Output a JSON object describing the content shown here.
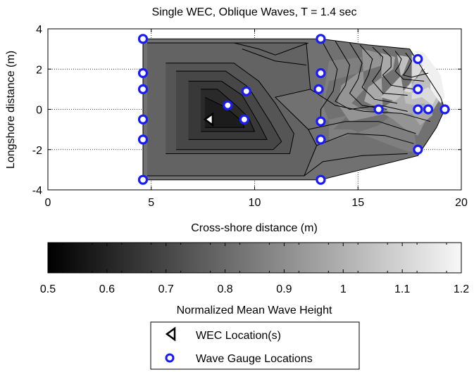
{
  "chart_data": [
    {
      "type": "contour",
      "title": "Single WEC, Oblique Waves, T = 1.4 sec",
      "xlabel": "Cross-shore distance (m)",
      "ylabel": "Longshore distance (m)",
      "xlim": [
        0,
        20
      ],
      "ylim": [
        -4,
        4
      ],
      "xticks": [
        0,
        5,
        10,
        15,
        20
      ],
      "yticks": [
        -4,
        -2,
        0,
        2,
        4
      ],
      "grid": true,
      "colormap": "gray",
      "color_range": [
        0.5,
        1.2
      ],
      "contour_bands": [
        {
          "level": 0.82,
          "points": [
            [
              4.6,
              3.5
            ],
            [
              13.2,
              3.5
            ],
            [
              15.5,
              3.2
            ],
            [
              17.5,
              3.0
            ],
            [
              19.0,
              0.6
            ],
            [
              19.2,
              0.0
            ],
            [
              18.8,
              -0.9
            ],
            [
              17.9,
              -2.3
            ],
            [
              13.2,
              -3.5
            ],
            [
              4.6,
              -3.5
            ]
          ]
        },
        {
          "level": 0.78,
          "points": [
            [
              4.8,
              3.3
            ],
            [
              12.5,
              3.3
            ],
            [
              12.7,
              1.0
            ],
            [
              11.0,
              0.6
            ],
            [
              12.6,
              -1.0
            ],
            [
              13.0,
              -1.8
            ],
            [
              12.4,
              -3.3
            ],
            [
              4.8,
              -3.3
            ]
          ]
        },
        {
          "level": 0.74,
          "points": [
            [
              5.7,
              2.3
            ],
            [
              9.0,
              2.3
            ],
            [
              10.2,
              1.4
            ],
            [
              11.0,
              0.3
            ],
            [
              11.9,
              -1.2
            ],
            [
              11.7,
              -2.2
            ],
            [
              5.7,
              -2.2
            ]
          ]
        },
        {
          "level": 0.7,
          "points": [
            [
              6.2,
              1.9
            ],
            [
              8.6,
              1.9
            ],
            [
              9.7,
              1.1
            ],
            [
              10.8,
              -0.7
            ],
            [
              11.3,
              -1.6
            ],
            [
              10.9,
              -2.0
            ],
            [
              6.2,
              -2.0
            ]
          ]
        },
        {
          "level": 0.66,
          "points": [
            [
              6.8,
              1.4
            ],
            [
              8.4,
              1.4
            ],
            [
              9.4,
              0.7
            ],
            [
              10.2,
              -0.7
            ],
            [
              10.6,
              -1.5
            ],
            [
              6.8,
              -1.5
            ]
          ]
        },
        {
          "level": 0.62,
          "points": [
            [
              7.4,
              1.0
            ],
            [
              8.2,
              1.0
            ],
            [
              9.1,
              0.2
            ],
            [
              9.7,
              -0.4
            ],
            [
              10.0,
              -1.1
            ],
            [
              7.4,
              -1.1
            ]
          ]
        },
        {
          "level": 0.58,
          "points": [
            [
              7.6,
              0.6
            ],
            [
              8.6,
              0.1
            ],
            [
              9.4,
              -0.6
            ],
            [
              9.5,
              -0.9
            ],
            [
              7.6,
              -0.9
            ]
          ]
        },
        {
          "level": 0.86,
          "points": [
            [
              13.6,
              2.4
            ],
            [
              15.2,
              2.6
            ],
            [
              15.0,
              1.8
            ],
            [
              13.6,
              1.4
            ],
            [
              13.3,
              0.2
            ],
            [
              13.6,
              -0.6
            ],
            [
              13.6,
              -1.6
            ],
            [
              16.0,
              -0.8
            ],
            [
              16.6,
              -0.3
            ],
            [
              17.5,
              0.4
            ],
            [
              17.8,
              -1.7
            ],
            [
              18.0,
              -2.1
            ],
            [
              17.4,
              -2.1
            ],
            [
              15.6,
              -1.4
            ],
            [
              14.7,
              -1.0
            ],
            [
              13.8,
              -1.0
            ],
            [
              14.5,
              -0.3
            ],
            [
              13.2,
              -0.6
            ],
            [
              13.4,
              1.2
            ]
          ]
        },
        {
          "level": 0.92,
          "points": [
            [
              15.2,
              3.0
            ],
            [
              16.0,
              2.8
            ],
            [
              16.2,
              2.2
            ],
            [
              15.0,
              1.8
            ],
            [
              14.2,
              1.2
            ],
            [
              14.0,
              0.3
            ],
            [
              14.6,
              -0.6
            ],
            [
              16.4,
              -0.2
            ],
            [
              17.4,
              1.2
            ],
            [
              17.9,
              1.2
            ],
            [
              18.3,
              0.6
            ],
            [
              18.3,
              -0.5
            ],
            [
              17.9,
              -1.3
            ],
            [
              17.3,
              -1.0
            ],
            [
              16.7,
              -0.5
            ],
            [
              16.2,
              -0.2
            ],
            [
              15.2,
              0.0
            ],
            [
              14.7,
              0.3
            ],
            [
              15.3,
              1.0
            ]
          ]
        },
        {
          "level": 0.98,
          "points": [
            [
              16.1,
              2.8
            ],
            [
              16.8,
              2.6
            ],
            [
              16.7,
              2.0
            ],
            [
              15.5,
              1.1
            ],
            [
              15.3,
              0.4
            ],
            [
              16.1,
              0.0
            ],
            [
              17.2,
              0.8
            ],
            [
              17.7,
              1.6
            ],
            [
              18.2,
              1.4
            ],
            [
              18.6,
              0.7
            ],
            [
              18.6,
              -0.3
            ],
            [
              18.0,
              -0.8
            ],
            [
              17.6,
              -0.2
            ],
            [
              16.8,
              -0.2
            ],
            [
              16.2,
              0.0
            ]
          ]
        },
        {
          "level": 1.04,
          "points": [
            [
              16.9,
              2.7
            ],
            [
              17.5,
              2.6
            ],
            [
              17.2,
              1.8
            ],
            [
              16.1,
              0.6
            ],
            [
              16.8,
              0.4
            ],
            [
              17.6,
              1.2
            ],
            [
              18.1,
              1.9
            ],
            [
              18.7,
              1.2
            ],
            [
              18.9,
              0.4
            ],
            [
              18.6,
              -0.1
            ],
            [
              18.2,
              0.3
            ],
            [
              17.8,
              0.2
            ],
            [
              17.3,
              0.3
            ]
          ]
        },
        {
          "level": 1.12,
          "points": [
            [
              17.6,
              2.7
            ],
            [
              18.3,
              2.5
            ],
            [
              18.0,
              1.8
            ],
            [
              17.2,
              0.9
            ],
            [
              17.8,
              0.8
            ],
            [
              18.4,
              1.1
            ],
            [
              18.8,
              0.6
            ],
            [
              18.6,
              0.2
            ],
            [
              18.1,
              0.6
            ],
            [
              17.6,
              0.5
            ]
          ]
        },
        {
          "level": 1.18,
          "points": [
            [
              17.8,
              2.9
            ],
            [
              18.2,
              2.8
            ],
            [
              19.0,
              1.7
            ],
            [
              19.2,
              0.6
            ],
            [
              19.0,
              0.3
            ],
            [
              18.5,
              1.0
            ],
            [
              18.5,
              1.6
            ],
            [
              18.0,
              2.4
            ]
          ]
        }
      ],
      "contour_lines": [
        [
          [
            13.2,
            3.5
          ],
          [
            14.0,
            2.0
          ],
          [
            13.8,
            0.9
          ],
          [
            13.2,
            0.0
          ],
          [
            13.2,
            -0.6
          ]
        ],
        [
          [
            13.9,
            3.4
          ],
          [
            14.6,
            2.2
          ],
          [
            14.4,
            1.2
          ],
          [
            13.9,
            0.4
          ],
          [
            14.6,
            0.0
          ],
          [
            16.1,
            0.2
          ],
          [
            17.4,
            -0.1
          ]
        ],
        [
          [
            14.6,
            3.3
          ],
          [
            15.2,
            2.3
          ],
          [
            15.0,
            1.5
          ],
          [
            14.6,
            0.8
          ],
          [
            15.2,
            0.2
          ],
          [
            16.4,
            0.0
          ]
        ],
        [
          [
            15.1,
            3.2
          ],
          [
            15.7,
            2.5
          ],
          [
            15.5,
            1.7
          ],
          [
            15.2,
            1.1
          ],
          [
            15.8,
            0.5
          ],
          [
            16.9,
            0.3
          ]
        ],
        [
          [
            15.7,
            3.1
          ],
          [
            16.2,
            2.6
          ],
          [
            16.1,
            2.0
          ],
          [
            15.7,
            1.4
          ],
          [
            16.2,
            0.8
          ],
          [
            17.4,
            0.7
          ]
        ],
        [
          [
            16.2,
            3.0
          ],
          [
            16.6,
            2.6
          ],
          [
            16.6,
            2.1
          ],
          [
            16.2,
            1.7
          ],
          [
            16.6,
            1.2
          ],
          [
            17.7,
            1.0
          ]
        ],
        [
          [
            16.8,
            2.9
          ],
          [
            17.1,
            2.5
          ],
          [
            17.0,
            2.2
          ],
          [
            16.8,
            1.9
          ],
          [
            17.2,
            1.5
          ],
          [
            18.2,
            1.4
          ]
        ],
        [
          [
            17.3,
            2.8
          ],
          [
            17.6,
            2.4
          ],
          [
            17.4,
            2.0
          ],
          [
            17.2,
            1.7
          ],
          [
            17.6,
            1.6
          ],
          [
            18.4,
            1.8
          ]
        ],
        [
          [
            12.7,
            1.0
          ],
          [
            13.9,
            0.2
          ],
          [
            15.3,
            -0.1
          ],
          [
            17.1,
            -0.2
          ],
          [
            18.5,
            -0.6
          ]
        ],
        [
          [
            12.6,
            -1.0
          ],
          [
            14.4,
            -0.6
          ],
          [
            16.0,
            -0.6
          ],
          [
            17.8,
            -1.2
          ]
        ],
        [
          [
            13.0,
            -1.8
          ],
          [
            14.5,
            -1.2
          ],
          [
            16.3,
            -1.3
          ],
          [
            17.7,
            -1.7
          ]
        ],
        [
          [
            12.4,
            -3.3
          ],
          [
            13.3,
            -2.6
          ],
          [
            15.2,
            -2.3
          ],
          [
            17.4,
            -2.2
          ]
        ],
        [
          [
            9.0,
            3.3
          ],
          [
            10.2,
            3.0
          ],
          [
            11.0,
            2.7
          ],
          [
            12.6,
            3.3
          ]
        ],
        [
          [
            9.4,
            3.0
          ],
          [
            11.0,
            2.4
          ],
          [
            12.5,
            2.2
          ]
        ],
        [
          [
            5.7,
            2.3
          ],
          [
            9.0,
            2.3
          ],
          [
            10.2,
            1.4
          ],
          [
            11.0,
            0.3
          ],
          [
            11.9,
            -1.2
          ],
          [
            11.7,
            -2.2
          ],
          [
            5.7,
            -2.2
          ]
        ],
        [
          [
            6.2,
            1.9
          ],
          [
            8.6,
            1.9
          ],
          [
            9.7,
            1.1
          ],
          [
            10.8,
            -0.7
          ],
          [
            11.3,
            -1.6
          ],
          [
            10.9,
            -2.0
          ],
          [
            6.2,
            -2.0
          ]
        ],
        [
          [
            6.8,
            1.4
          ],
          [
            8.4,
            1.4
          ],
          [
            9.4,
            0.7
          ],
          [
            10.2,
            -0.7
          ],
          [
            10.6,
            -1.5
          ],
          [
            6.8,
            -1.5
          ]
        ],
        [
          [
            7.4,
            1.0
          ],
          [
            8.2,
            1.0
          ],
          [
            9.1,
            0.2
          ],
          [
            9.7,
            -0.4
          ],
          [
            10.0,
            -1.1
          ],
          [
            7.4,
            -1.1
          ]
        ],
        [
          [
            7.6,
            0.6
          ],
          [
            8.6,
            0.1
          ],
          [
            9.4,
            -0.6
          ],
          [
            9.5,
            -0.9
          ],
          [
            7.6,
            -0.9
          ]
        ],
        [
          [
            4.8,
            3.3
          ],
          [
            12.5,
            3.3
          ],
          [
            12.7,
            1.0
          ],
          [
            11.0,
            0.6
          ],
          [
            12.6,
            -1.0
          ],
          [
            13.0,
            -1.8
          ],
          [
            12.4,
            -3.3
          ],
          [
            4.8,
            -3.3
          ]
        ]
      ],
      "wec_locations": [
        [
          7.8,
          -0.5
        ]
      ],
      "gauge_locations": [
        [
          4.6,
          3.5
        ],
        [
          4.6,
          1.8
        ],
        [
          4.6,
          1.0
        ],
        [
          4.6,
          -0.5
        ],
        [
          4.6,
          -1.5
        ],
        [
          4.6,
          -3.5
        ],
        [
          9.6,
          0.9
        ],
        [
          8.7,
          0.2
        ],
        [
          9.5,
          -0.5
        ],
        [
          13.2,
          3.5
        ],
        [
          13.2,
          1.8
        ],
        [
          13.1,
          1.0
        ],
        [
          13.2,
          -0.6
        ],
        [
          13.2,
          -1.5
        ],
        [
          13.2,
          -3.5
        ],
        [
          16.0,
          0.0
        ],
        [
          17.9,
          2.5
        ],
        [
          17.9,
          1.0
        ],
        [
          17.9,
          0.0
        ],
        [
          18.4,
          0.0
        ],
        [
          19.2,
          0.0
        ],
        [
          17.9,
          -2.0
        ]
      ]
    },
    {
      "type": "colorbar",
      "xlabel": "Normalized Mean Wave Height",
      "range": [
        0.5,
        1.2
      ],
      "ticks": [
        "0.5",
        "0.6",
        "0.7",
        "0.8",
        "0.9",
        "1",
        "1.1",
        "1.2"
      ],
      "colormap": "gray"
    }
  ],
  "legend": {
    "items": [
      {
        "label": "WEC Location(s)",
        "marker": "left-triangle",
        "color": "#000000"
      },
      {
        "label": "Wave Gauge Locations",
        "marker": "circle",
        "color": "#1a1aff"
      }
    ]
  },
  "colors": {
    "gauge": "#1a1aff",
    "gauge_fill": "#ffffff",
    "line": "#000000"
  }
}
